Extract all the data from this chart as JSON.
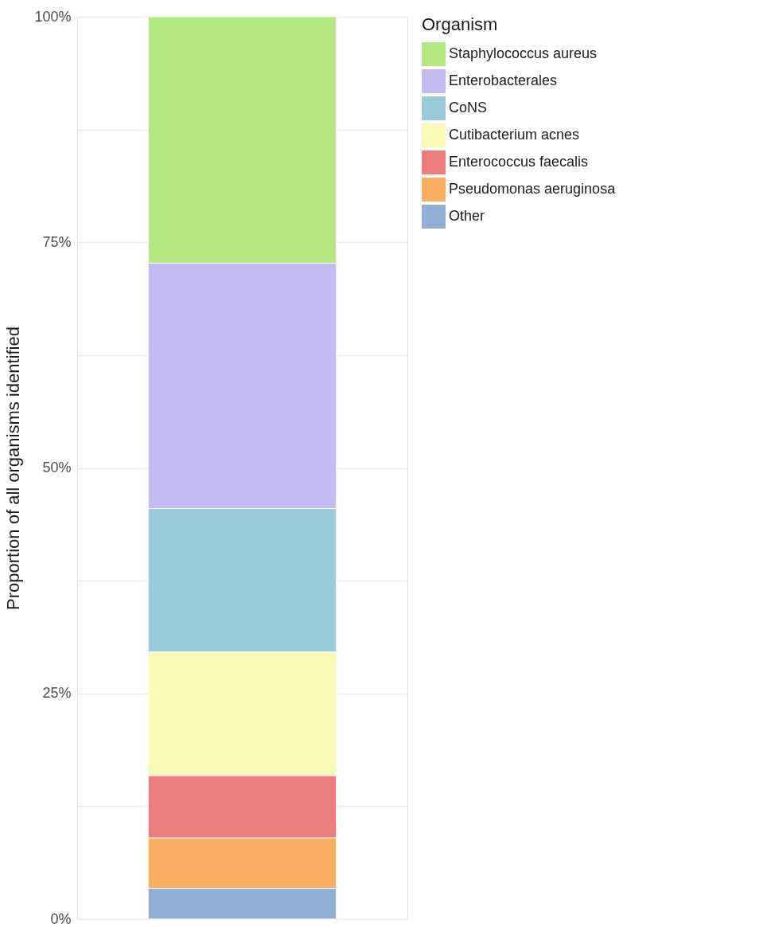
{
  "chart_data": {
    "type": "bar",
    "stacked": true,
    "ylabel": "Proportion of all organisms identified",
    "legend_title": "Organism",
    "legend": "right",
    "grid": "y",
    "categories": [
      null
    ],
    "ylim": [
      0,
      100
    ],
    "yticks": [
      {
        "value": 0,
        "label": "0%"
      },
      {
        "value": 12.5,
        "label": null
      },
      {
        "value": 25,
        "label": "25%"
      },
      {
        "value": 37.5,
        "label": null
      },
      {
        "value": 50,
        "label": "50%"
      },
      {
        "value": 62.5,
        "label": null
      },
      {
        "value": 75,
        "label": "75%"
      },
      {
        "value": 87.5,
        "label": null
      },
      {
        "value": 100,
        "label": "100%"
      }
    ],
    "series": [
      {
        "name": "Other",
        "color": "#8fafd3",
        "values": [
          3.4
        ]
      },
      {
        "name": "Pseudomonas aeruginosa",
        "color": "#f9ae62",
        "values": [
          5.6
        ]
      },
      {
        "name": "Enterococcus faecalis",
        "color": "#ec7d7b",
        "values": [
          6.9
        ]
      },
      {
        "name": "Cutibacterium acnes",
        "color": "#f9f9b5",
        "values": [
          13.7
        ]
      },
      {
        "name": "CoNS",
        "color": "#9acbd6",
        "values": [
          15.9
        ]
      },
      {
        "name": "Enterobacterales",
        "color": "#c4bbf0",
        "values": [
          27.2
        ]
      },
      {
        "name": "Staphylococcus aureus",
        "color": "#b3e77f",
        "values": [
          27.3
        ]
      }
    ]
  }
}
